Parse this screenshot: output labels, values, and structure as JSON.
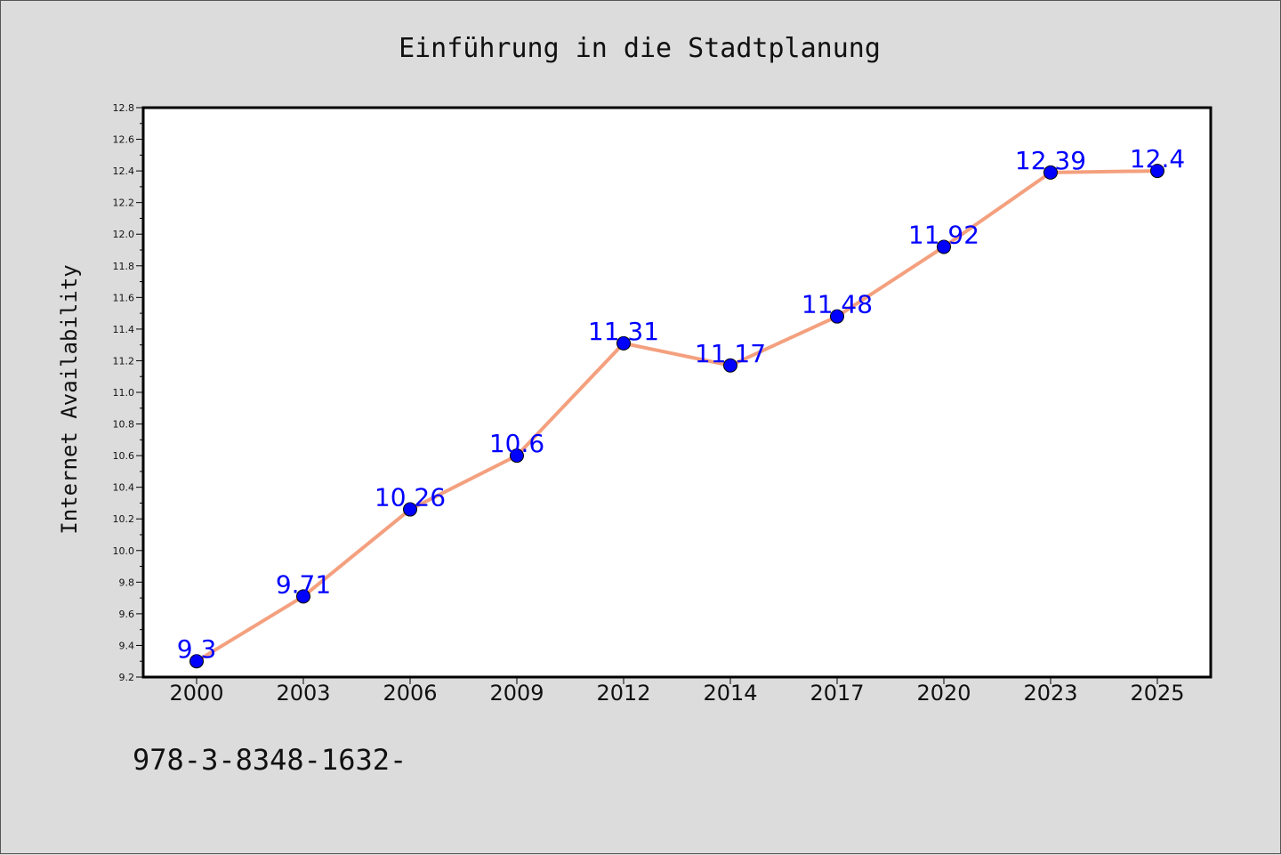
{
  "chart_data": {
    "type": "line",
    "title": "Einführung in die Stadtplanung",
    "xlabel": "",
    "ylabel": "Internet Availability",
    "categories": [
      "2000",
      "2003",
      "2006",
      "2009",
      "2012",
      "2014",
      "2017",
      "2020",
      "2023",
      "2025"
    ],
    "values": [
      9.3,
      9.71,
      10.26,
      10.6,
      11.31,
      11.17,
      11.48,
      11.92,
      12.39,
      12.4
    ],
    "data_labels": [
      "9.3",
      "9.71",
      "10.26",
      "10.6",
      "11.31",
      "11.17",
      "11.48",
      "11.92",
      "12.39",
      "12.4"
    ],
    "ylim": [
      9.2,
      12.8
    ],
    "yticks": [
      "9.2",
      "9.4",
      "9.6",
      "9.8",
      "10.0",
      "10.2",
      "10.4",
      "10.6",
      "10.8",
      "11.0",
      "11.2",
      "11.4",
      "11.6",
      "11.8",
      "12.0",
      "12.2",
      "12.4",
      "12.6",
      "12.8"
    ],
    "grid": false,
    "line_color": "#f4a07e",
    "marker_color": "#0000ff",
    "label_color": "#0000ff"
  },
  "footer": {
    "code": "978-3-8348-1632-"
  }
}
